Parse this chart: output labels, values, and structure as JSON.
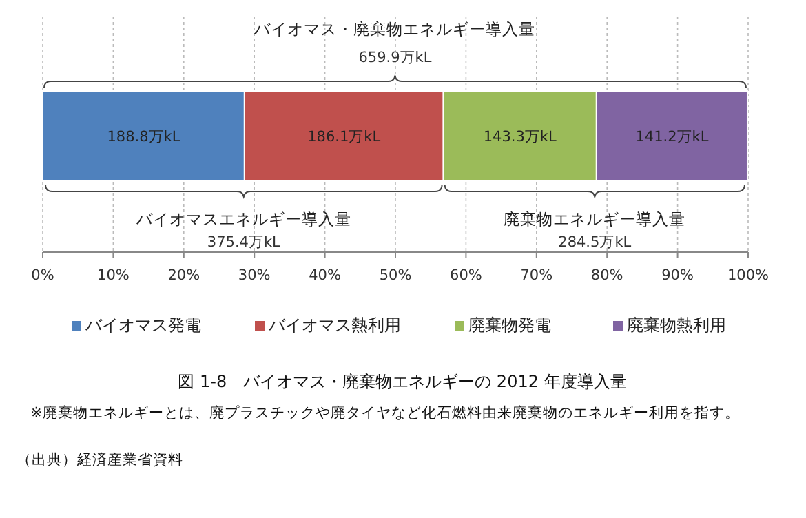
{
  "chart_data": {
    "type": "bar",
    "orientation": "horizontal",
    "stacked": true,
    "title": "図 1-8　バイオマス・廃棄物エネルギーの 2012 年度導入量",
    "categories": [
      null
    ],
    "series": [
      {
        "name": "バイオマス発電",
        "color": "#4f81bd",
        "values": [
          28.6
        ]
      },
      {
        "name": "バイオマス熱利用",
        "color": "#c0504d",
        "values": [
          28.2
        ]
      },
      {
        "name": "廃棄物発電",
        "color": "#9bbb59",
        "values": [
          21.7
        ]
      },
      {
        "name": "廃棄物熱利用",
        "color": "#8064a2",
        "values": [
          21.4
        ]
      }
    ],
    "xlim": [
      0,
      100
    ],
    "xticks": [
      {
        "value": 0,
        "label": "0%"
      },
      {
        "value": 10,
        "label": "10%"
      },
      {
        "value": 20,
        "label": "20%"
      },
      {
        "value": 30,
        "label": "30%"
      },
      {
        "value": 40,
        "label": "40%"
      },
      {
        "value": 50,
        "label": "50%"
      },
      {
        "value": 60,
        "label": "60%"
      },
      {
        "value": 70,
        "label": "70%"
      },
      {
        "value": 80,
        "label": "80%"
      },
      {
        "value": 90,
        "label": "90%"
      },
      {
        "value": 100,
        "label": "100%"
      }
    ],
    "grid": "x",
    "legend": "bottom",
    "annotations": [
      "バイオマス・廃棄物エネルギー導入量",
      "659.9万kL",
      "バイオマスエネルギー導入量",
      "375.4万kL",
      "廃棄物エネルギー導入量",
      "284.5万kL",
      "※廃棄物エネルギーとは、廃プラスチックや廃タイヤなど化石燃料由来廃棄物のエネルギー利用を指す。",
      "（出典）経済産業省資料",
      "188.8万kL",
      "186.1万kL",
      "143.3万kL",
      "141.2万kL"
    ]
  }
}
